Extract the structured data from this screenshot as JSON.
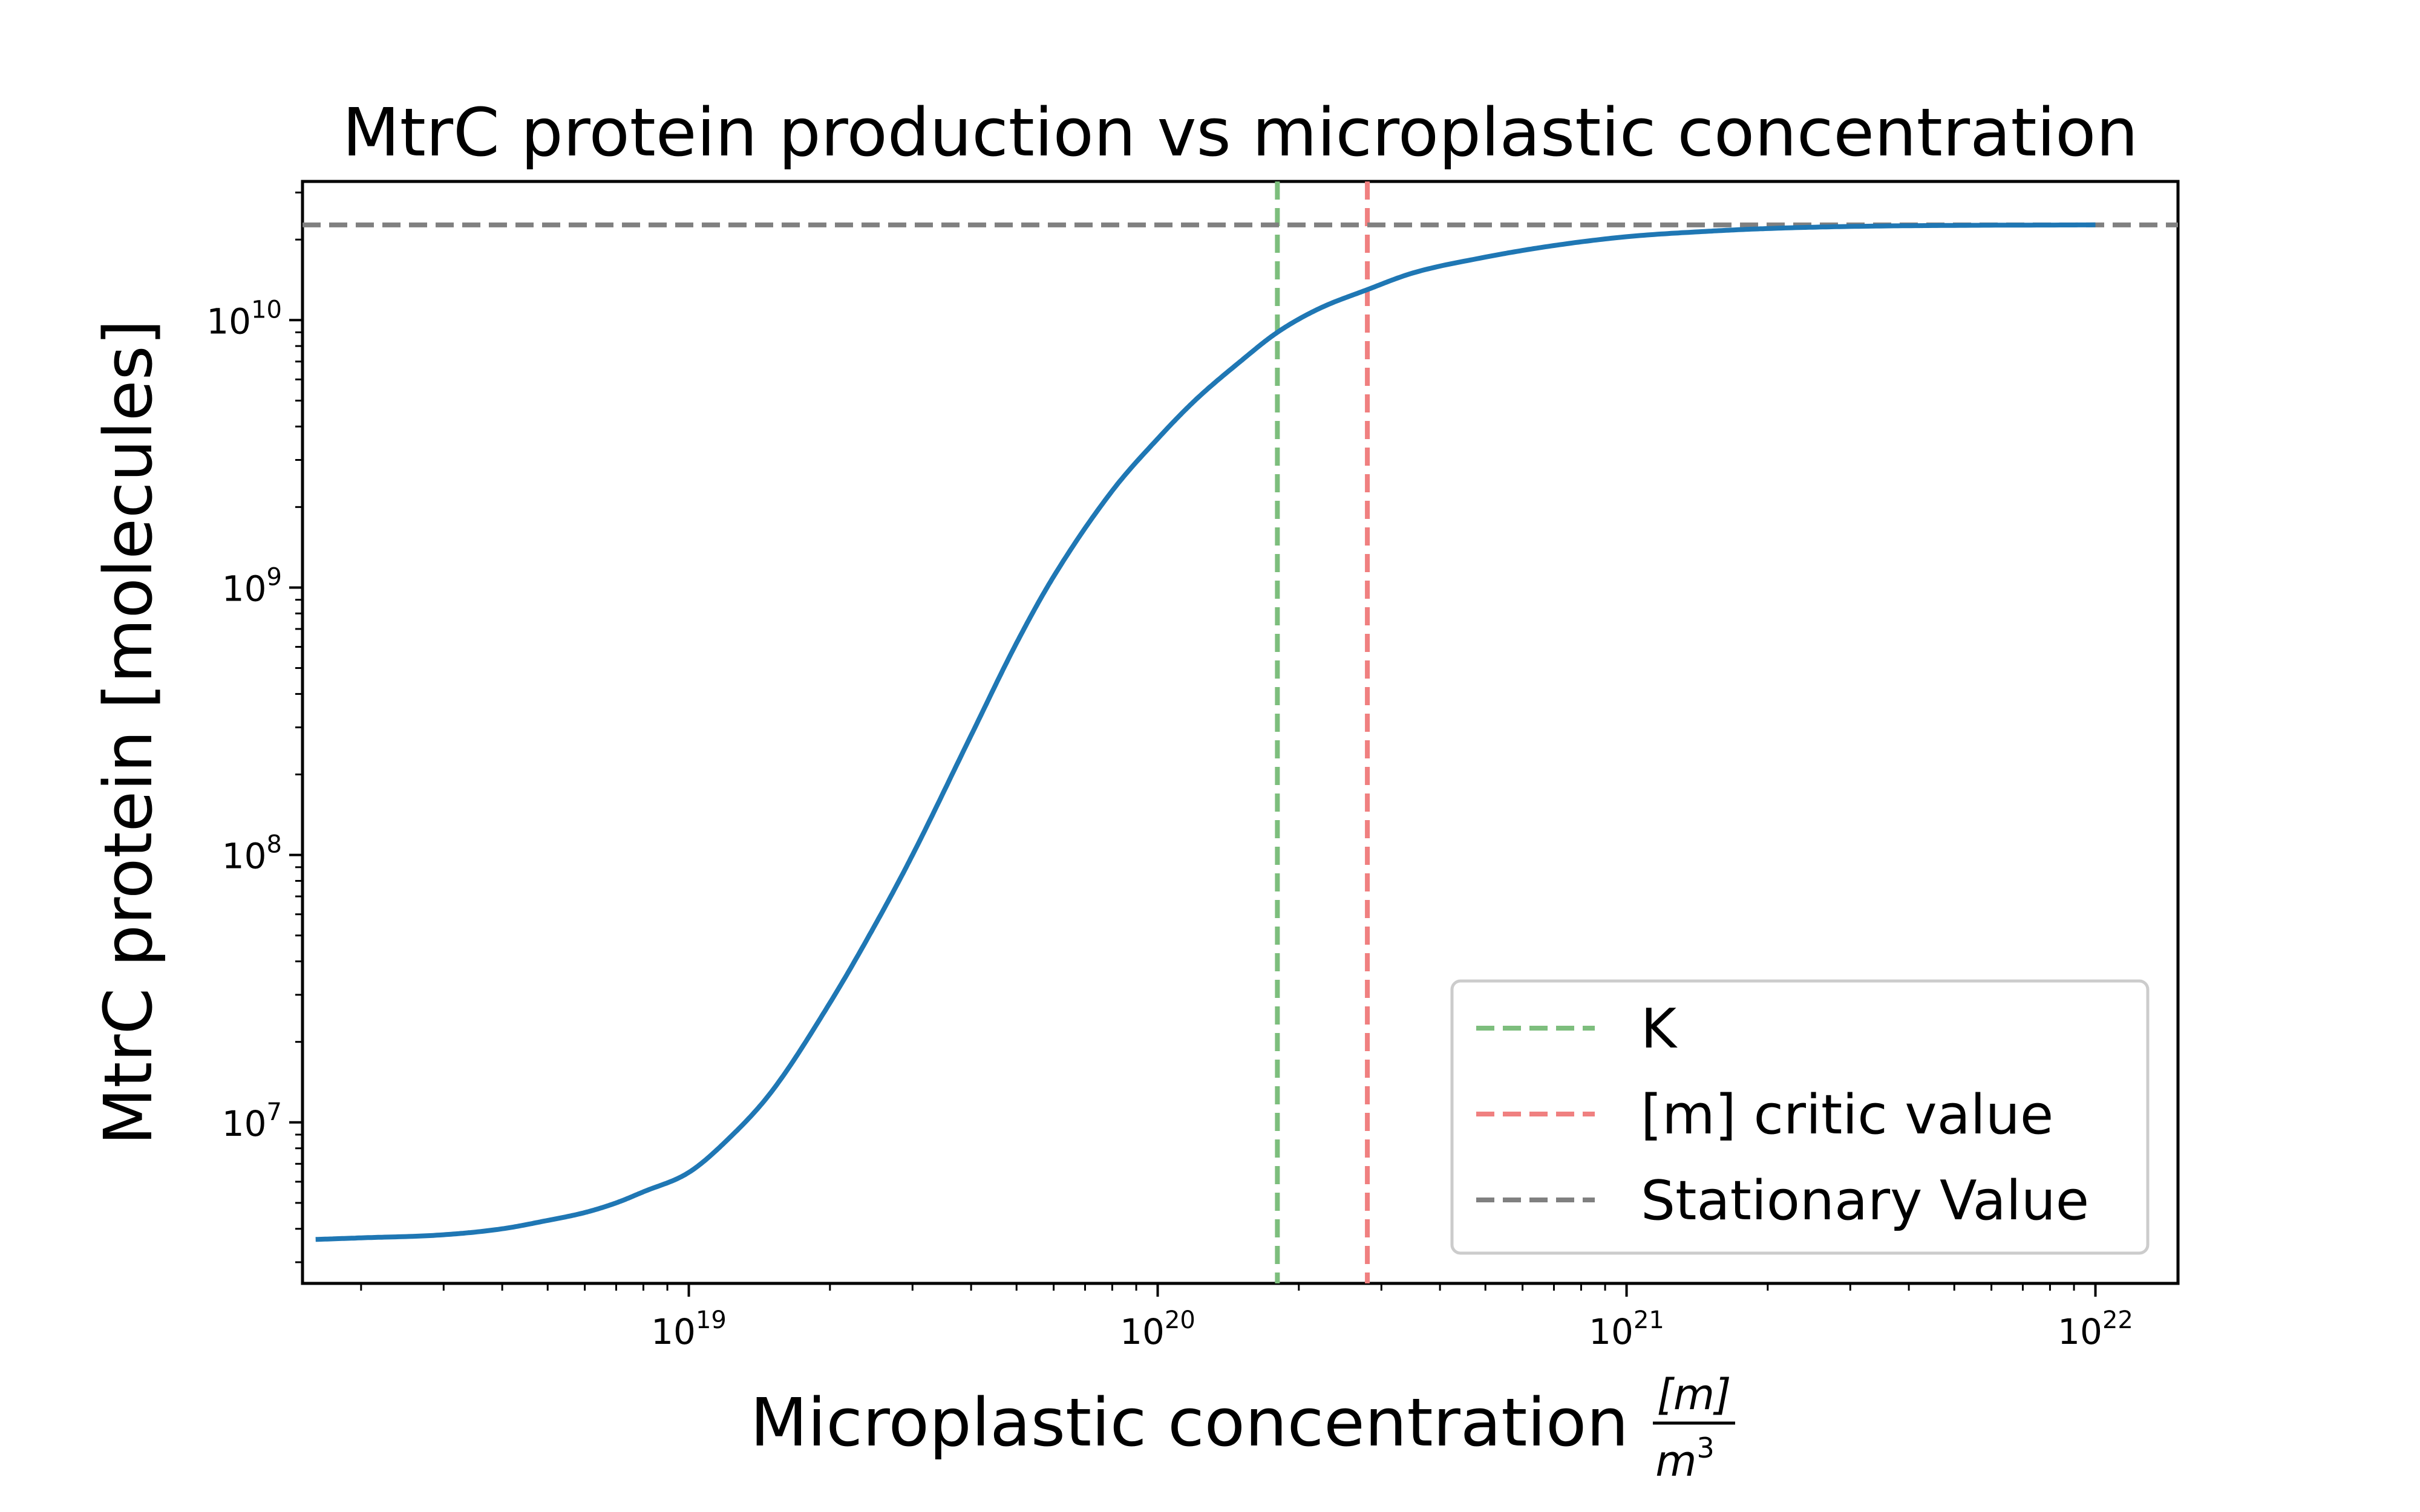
{
  "chart_data": {
    "type": "line",
    "title": "MtrC protein production vs microplastic concentration",
    "xlabel": "Microplastic concentration",
    "xlabel_unit_numerator": "[m]",
    "xlabel_unit_denominator": "m",
    "xlabel_unit_denominator_exp": "3",
    "ylabel": "MtrC protein [molecules]",
    "xscale": "log",
    "yscale": "log",
    "xlim": [
      1.5e+18,
      1.5e+22
    ],
    "ylim": [
      2500000.0,
      33000000000.0
    ],
    "x_ticks": [
      {
        "base": "10",
        "exp": "19",
        "value": 1e+19
      },
      {
        "base": "10",
        "exp": "20",
        "value": 1e+20
      },
      {
        "base": "10",
        "exp": "21",
        "value": 1e+21
      },
      {
        "base": "10",
        "exp": "22",
        "value": 1e+22
      }
    ],
    "y_ticks": [
      {
        "base": "10",
        "exp": "7",
        "value": 10000000.0
      },
      {
        "base": "10",
        "exp": "8",
        "value": 100000000.0
      },
      {
        "base": "10",
        "exp": "9",
        "value": 1000000000.0
      },
      {
        "base": "10",
        "exp": "10",
        "value": 10000000000.0
      }
    ],
    "grid": false,
    "legend_position": "bottom-right",
    "series": [
      {
        "color": "#1f77b4",
        "x": [
          1.6e+18,
          2e+18,
          3e+18,
          4e+18,
          5e+18,
          6e+18,
          7e+18,
          8e+18,
          1e+19,
          1.2e+19,
          1.5e+19,
          2e+19,
          2.5e+19,
          3e+19,
          4e+19,
          5e+19,
          6e+19,
          8e+19,
          1e+20,
          1.2e+20,
          1.5e+20,
          1.8e+20,
          2.2e+20,
          2.8e+20,
          3.5e+20,
          5e+20,
          7e+20,
          1e+21,
          1.5e+21,
          2e+21,
          3e+21,
          5e+21,
          1e+22
        ],
        "y": [
          3650000.0,
          3700000.0,
          3800000.0,
          4000000.0,
          4300000.0,
          4600000.0,
          5000000.0,
          5500000.0,
          6500000.0,
          8500000.0,
          13000000.0,
          28000000.0,
          55000000.0,
          100000000.0,
          280000000.0,
          620000000.0,
          1100000000.0,
          2300000000.0,
          3600000000.0,
          5000000000.0,
          7000000000.0,
          9000000000.0,
          11000000000.0,
          13000000000.0,
          15000000000.0,
          17200000000.0,
          19000000000.0,
          20500000000.0,
          21500000000.0,
          22000000000.0,
          22400000000.0,
          22600000000.0,
          22700000000.0
        ]
      }
    ],
    "reference_lines": [
      {
        "label": "K",
        "orientation": "vertical",
        "value": 1.8e+20,
        "color": "#7dbe7d"
      },
      {
        "label": "[m] critic value",
        "orientation": "vertical",
        "value": 2.8e+20,
        "color": "#f08080"
      },
      {
        "label": "Stationary Value",
        "orientation": "horizontal",
        "value": 22700000000.0,
        "color": "#808080"
      }
    ]
  }
}
